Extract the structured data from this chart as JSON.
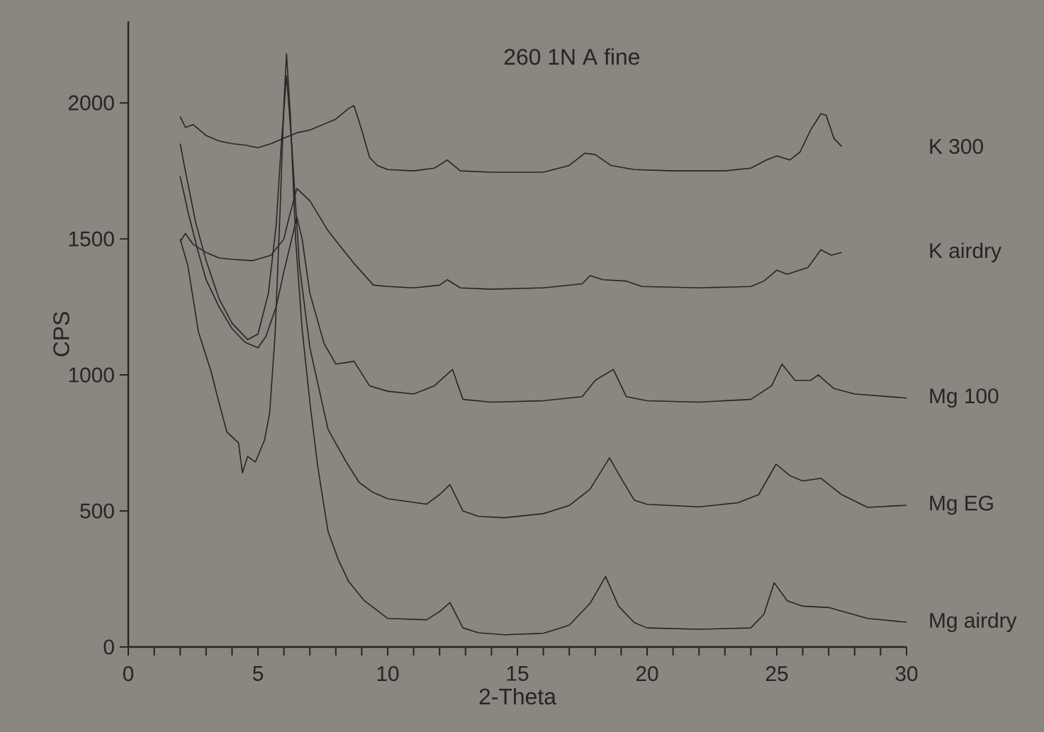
{
  "chart_data": {
    "type": "line",
    "title": "260 1N A fine",
    "xlabel": "2-Theta",
    "ylabel": "CPS",
    "xlim": [
      0,
      30
    ],
    "ylim": [
      0,
      2300
    ],
    "xticks": [
      0,
      {
        "value": 1,
        "label": null
      },
      {
        "value": 2,
        "label": null
      },
      {
        "value": 3,
        "label": null
      },
      {
        "value": 4,
        "label": null
      },
      5,
      {
        "value": 6,
        "label": null
      },
      {
        "value": 7,
        "label": null
      },
      {
        "value": 8,
        "label": null
      },
      {
        "value": 9,
        "label": null
      },
      10,
      {
        "value": 11,
        "label": null
      },
      {
        "value": 12,
        "label": null
      },
      {
        "value": 13,
        "label": null
      },
      {
        "value": 14,
        "label": null
      },
      15,
      {
        "value": 16,
        "label": null
      },
      {
        "value": 17,
        "label": null
      },
      {
        "value": 18,
        "label": null
      },
      {
        "value": 19,
        "label": null
      },
      20,
      {
        "value": 21,
        "label": null
      },
      {
        "value": 22,
        "label": null
      },
      {
        "value": 23,
        "label": null
      },
      {
        "value": 24,
        "label": null
      },
      25,
      {
        "value": 26,
        "label": null
      },
      {
        "value": 27,
        "label": null
      },
      {
        "value": 28,
        "label": null
      },
      {
        "value": 29,
        "label": null
      },
      30
    ],
    "yticks": [
      0,
      500,
      1000,
      1500,
      2000
    ],
    "line_style": "solid",
    "series": [
      {
        "name": "K 300",
        "color": "#262626",
        "x": [
          2.0,
          2.2,
          2.5,
          3.0,
          3.5,
          4.0,
          4.5,
          5.0,
          5.5,
          6.0,
          6.5,
          7.0,
          7.5,
          8.0,
          8.5,
          8.7,
          9.0,
          9.3,
          9.6,
          10,
          11,
          11.8,
          12.3,
          12.8,
          14,
          16,
          17.0,
          17.6,
          18.0,
          18.6,
          19.5,
          21,
          23,
          24,
          24.6,
          25.0,
          25.5,
          25.9,
          26.3,
          26.7,
          26.9,
          27.2,
          27.5
        ],
        "values": [
          1950,
          1910,
          1920,
          1880,
          1860,
          1850,
          1845,
          1835,
          1850,
          1870,
          1890,
          1900,
          1920,
          1940,
          1980,
          1990,
          1900,
          1800,
          1770,
          1755,
          1750,
          1760,
          1790,
          1750,
          1745,
          1745,
          1770,
          1815,
          1810,
          1770,
          1755,
          1750,
          1750,
          1760,
          1790,
          1805,
          1790,
          1820,
          1900,
          1960,
          1955,
          1870,
          1840
        ]
      },
      {
        "name": "K airdry",
        "color": "#262626",
        "x": [
          2.0,
          2.2,
          2.5,
          3.0,
          3.5,
          4.0,
          4.8,
          5.5,
          6.0,
          6.2,
          6.5,
          7.0,
          7.7,
          8.2,
          8.7,
          9.45,
          10,
          11,
          12.0,
          12.3,
          12.8,
          14,
          16,
          17.5,
          17.8,
          18.3,
          19.2,
          19.8,
          22,
          24,
          24.5,
          25.0,
          25.4,
          26.2,
          26.7,
          27.1,
          27.5
        ],
        "values": [
          1490,
          1520,
          1480,
          1450,
          1430,
          1425,
          1420,
          1440,
          1500,
          1580,
          1685,
          1640,
          1530,
          1470,
          1410,
          1330,
          1325,
          1320,
          1330,
          1350,
          1320,
          1315,
          1320,
          1335,
          1365,
          1350,
          1345,
          1325,
          1320,
          1325,
          1345,
          1385,
          1370,
          1395,
          1460,
          1440,
          1450
        ]
      },
      {
        "name": "Mg 100",
        "color": "#262626",
        "x": [
          2.0,
          2.3,
          2.7,
          3.0,
          3.5,
          4.0,
          4.5,
          5.0,
          5.3,
          5.7,
          6.0,
          6.3,
          6.5,
          6.7,
          7.0,
          7.55,
          8.0,
          8.7,
          9.3,
          10,
          11,
          11.8,
          12.5,
          12.9,
          14,
          16,
          17.5,
          18.0,
          18.7,
          19.2,
          20,
          22,
          24,
          24.8,
          25.2,
          25.7,
          26.3,
          26.6,
          27.2,
          28,
          30
        ],
        "values": [
          1730,
          1600,
          1450,
          1350,
          1250,
          1170,
          1120,
          1100,
          1140,
          1250,
          1380,
          1500,
          1580,
          1500,
          1300,
          1115,
          1040,
          1050,
          960,
          940,
          930,
          960,
          1020,
          910,
          900,
          905,
          920,
          980,
          1020,
          920,
          905,
          900,
          910,
          960,
          1040,
          980,
          980,
          1000,
          950,
          930,
          915
        ]
      },
      {
        "name": "Mg EG",
        "color": "#262626",
        "x": [
          2.0,
          2.2,
          2.6,
          3.0,
          3.5,
          4.0,
          4.6,
          5.0,
          5.4,
          5.7,
          5.9,
          6.1,
          6.3,
          6.6,
          7.0,
          7.7,
          8.4,
          8.9,
          9.4,
          10,
          11.5,
          12.0,
          12.4,
          12.9,
          13.5,
          14.5,
          16,
          17,
          17.8,
          18.55,
          19.0,
          19.5,
          20,
          22,
          23.5,
          24.3,
          24.97,
          25.5,
          26.0,
          26.7,
          27.5,
          28.5,
          30
        ],
        "values": [
          1850,
          1750,
          1560,
          1420,
          1280,
          1190,
          1130,
          1150,
          1300,
          1550,
          1850,
          2100,
          1850,
          1400,
          1100,
          800,
          680,
          605,
          570,
          545,
          525,
          560,
          597,
          500,
          480,
          475,
          490,
          520,
          580,
          695,
          620,
          540,
          524,
          515,
          530,
          560,
          672,
          630,
          610,
          620,
          560,
          513,
          521
        ]
      },
      {
        "name": "Mg airdry",
        "color": "#262626",
        "x": [
          2.0,
          2.3,
          2.7,
          3.2,
          3.45,
          3.8,
          4.25,
          4.4,
          4.6,
          4.9,
          5.25,
          5.45,
          5.66,
          5.85,
          6.0,
          6.1,
          6.25,
          6.45,
          6.7,
          7.0,
          7.3,
          7.7,
          8.1,
          8.5,
          9.1,
          10,
          11.5,
          12.0,
          12.4,
          12.9,
          13.5,
          14.5,
          16,
          17.0,
          17.8,
          18.4,
          18.9,
          19.5,
          20,
          22,
          24.0,
          24.5,
          24.9,
          25.4,
          26.0,
          27,
          28.5,
          30
        ],
        "values": [
          1500,
          1400,
          1160,
          1010,
          915,
          790,
          750,
          640,
          700,
          680,
          760,
          860,
          1150,
          1600,
          2000,
          2180,
          1950,
          1500,
          1170,
          900,
          665,
          425,
          320,
          240,
          170,
          105,
          100,
          130,
          163,
          70,
          52,
          45,
          50,
          80,
          160,
          259,
          150,
          90,
          70,
          65,
          70,
          120,
          236,
          170,
          150,
          145,
          105,
          91
        ]
      }
    ]
  }
}
